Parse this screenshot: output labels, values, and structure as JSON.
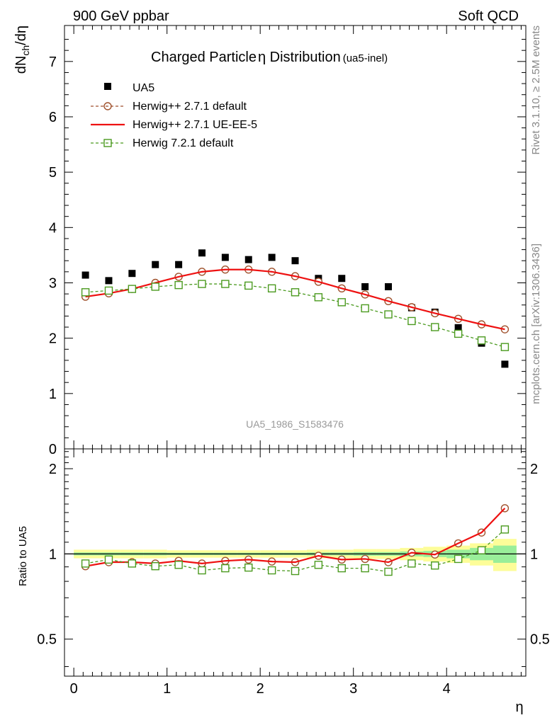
{
  "header": {
    "left": "900 GeV ppbar",
    "right": "Soft QCD"
  },
  "side_text": {
    "rivet": "Rivet 3.1.10, ≥ 2.5M events",
    "mcplots": "mcplots.cern.ch [arXiv:1306.3436]"
  },
  "colors": {
    "data": "#000000",
    "herwigpp_default": "#a0522d",
    "herwigpp_ueee5": "#ee1111",
    "herwig7_default": "#4b9a1f",
    "band_yellow": "#fdfd99",
    "band_green": "#99ee99"
  },
  "chart_data": [
    {
      "type": "scatter",
      "title": "Charged Particle",
      "title_symbol": "η",
      "title_tail": " Distribution",
      "title_suffix": "(ua5-inel)",
      "ylabel": "dN",
      "ylabel_sub": "ch",
      "ylabel_tail": "/dη",
      "xlabel": "η",
      "watermark": "UA5_1986_S1583476",
      "xlim": [
        -0.1,
        4.85
      ],
      "ylim": [
        0,
        7.65
      ],
      "yticks": [
        0,
        1,
        2,
        3,
        4,
        5,
        6,
        7
      ],
      "ytick_labels": [
        "0",
        "1",
        "2",
        "3",
        "4",
        "5",
        "6",
        "7"
      ],
      "x": [
        0.125,
        0.375,
        0.625,
        0.875,
        1.125,
        1.375,
        1.625,
        1.875,
        2.125,
        2.375,
        2.625,
        2.875,
        3.125,
        3.375,
        3.625,
        3.875,
        4.125,
        4.375,
        4.625
      ],
      "series": [
        {
          "name": "UA5",
          "style": "data",
          "values": [
            3.14,
            3.04,
            3.17,
            3.33,
            3.33,
            3.54,
            3.46,
            3.42,
            3.46,
            3.4,
            3.08,
            3.08,
            2.93,
            2.93,
            2.55,
            2.47,
            2.19,
            1.91,
            1.53
          ]
        },
        {
          "name": "Herwig++ 2.7.1 default",
          "style": "circle",
          "values": [
            2.75,
            2.81,
            2.89,
            3.0,
            3.11,
            3.2,
            3.24,
            3.24,
            3.2,
            3.12,
            3.02,
            2.9,
            2.79,
            2.67,
            2.56,
            2.45,
            2.35,
            2.25,
            2.16
          ]
        },
        {
          "name": "Herwig++ 2.7.1 UE-EE-5",
          "style": "line",
          "values": [
            2.75,
            2.81,
            2.89,
            3.0,
            3.11,
            3.2,
            3.24,
            3.24,
            3.2,
            3.12,
            3.02,
            2.9,
            2.79,
            2.67,
            2.56,
            2.45,
            2.35,
            2.25,
            2.16
          ]
        },
        {
          "name": "Herwig 7.2.1 default",
          "style": "square",
          "values": [
            2.83,
            2.86,
            2.89,
            2.93,
            2.96,
            2.98,
            2.98,
            2.95,
            2.9,
            2.83,
            2.74,
            2.65,
            2.54,
            2.43,
            2.31,
            2.2,
            2.08,
            1.96,
            1.84
          ]
        }
      ]
    },
    {
      "type": "line",
      "ylabel": "Ratio to UA5",
      "xlabel": "η",
      "xlim": [
        -0.1,
        4.85
      ],
      "ylim": [
        0.37,
        2.35
      ],
      "yscale": "log",
      "yticks": [
        0.5,
        1,
        2
      ],
      "ytick_labels": [
        "0.5",
        "1",
        "2"
      ],
      "xticks": [
        0,
        1,
        2,
        3,
        4
      ],
      "xtick_labels": [
        "0",
        "1",
        "2",
        "3",
        "4"
      ],
      "x": [
        0.125,
        0.375,
        0.625,
        0.875,
        1.125,
        1.375,
        1.625,
        1.875,
        2.125,
        2.375,
        2.625,
        2.875,
        3.125,
        3.375,
        3.625,
        3.875,
        4.125,
        4.375,
        4.625
      ],
      "bands": {
        "edges": [
          0,
          0.25,
          0.5,
          0.75,
          1.0,
          1.25,
          1.5,
          1.75,
          2.0,
          2.25,
          2.5,
          2.75,
          3.0,
          3.25,
          3.5,
          3.75,
          4.0,
          4.25,
          4.5,
          4.75
        ],
        "yellow_rel": [
          0.035,
          0.035,
          0.035,
          0.035,
          0.03,
          0.03,
          0.03,
          0.03,
          0.03,
          0.03,
          0.035,
          0.035,
          0.04,
          0.04,
          0.05,
          0.06,
          0.07,
          0.09,
          0.13
        ],
        "green_rel": [
          0.012,
          0.012,
          0.012,
          0.012,
          0.01,
          0.01,
          0.01,
          0.01,
          0.01,
          0.01,
          0.012,
          0.012,
          0.015,
          0.015,
          0.02,
          0.025,
          0.035,
          0.05,
          0.07
        ]
      },
      "series": [
        {
          "name": "Herwig++ 2.7.1 default",
          "style": "circle",
          "values": [
            0.905,
            0.935,
            0.935,
            0.925,
            0.945,
            0.925,
            0.945,
            0.955,
            0.94,
            0.935,
            0.985,
            0.955,
            0.96,
            0.935,
            1.01,
            0.995,
            1.09,
            1.19,
            1.45
          ]
        },
        {
          "name": "Herwig++ 2.7.1 UE-EE-5",
          "style": "line",
          "values": [
            0.905,
            0.935,
            0.935,
            0.925,
            0.945,
            0.925,
            0.945,
            0.955,
            0.94,
            0.935,
            0.985,
            0.955,
            0.96,
            0.935,
            1.01,
            0.995,
            1.09,
            1.19,
            1.45
          ]
        },
        {
          "name": "Herwig 7.2.1 default",
          "style": "square",
          "values": [
            0.925,
            0.955,
            0.925,
            0.905,
            0.915,
            0.875,
            0.89,
            0.895,
            0.875,
            0.87,
            0.915,
            0.89,
            0.89,
            0.865,
            0.925,
            0.91,
            0.96,
            1.03,
            1.22
          ]
        }
      ]
    }
  ]
}
